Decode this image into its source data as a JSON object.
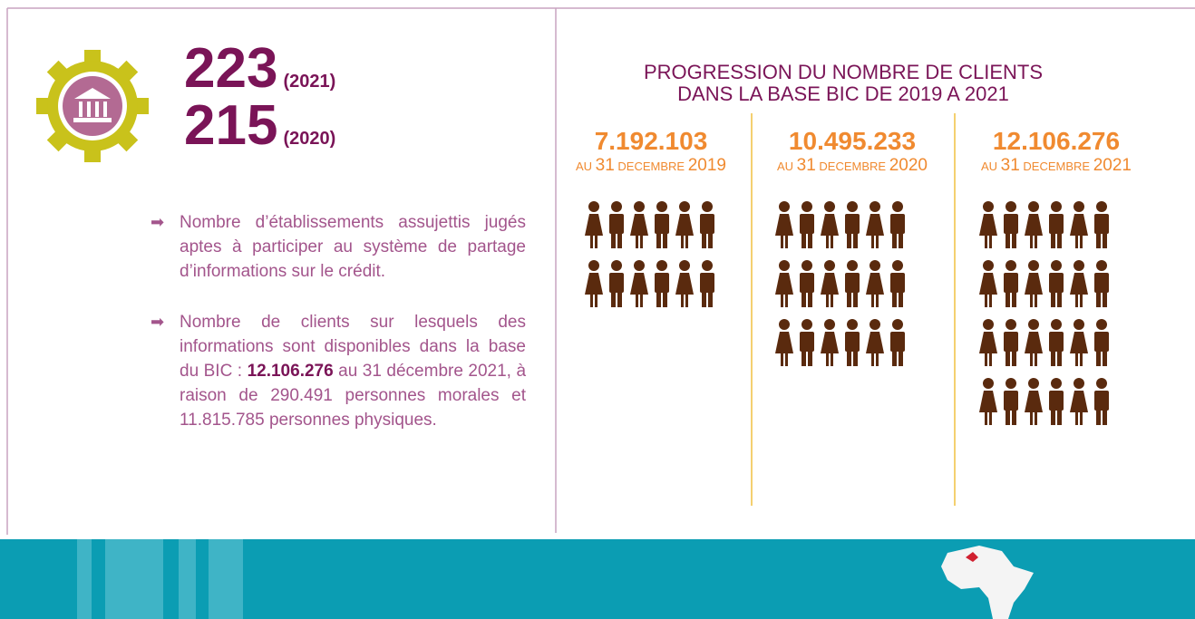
{
  "left": {
    "figures": [
      {
        "value": "223",
        "year": "(2021)"
      },
      {
        "value": "215",
        "year": "(2020)"
      }
    ],
    "bullets": [
      [
        "Nombre d’établissements assujettis jugés aptes à participer au système de partage d’informations sur le crédit."
      ],
      [
        "Nombre de clients sur lesquels des informations sont disponibles dans la base du BIC : ",
        "12.106.276",
        " au 31 décembre 2021, à raison de 290.491 personnes morales et 11.815.785 personnes physiques."
      ]
    ]
  },
  "right": {
    "title": [
      "PROGRESSION DU NOMBRE DE CLIENTS",
      "DANS LA BASE BIC DE 2019 A 2021"
    ],
    "columns": [
      {
        "count": "7.192.103",
        "date": [
          "AU",
          "31",
          "DECEMBRE",
          "2019"
        ]
      },
      {
        "count": "10.495.233",
        "date": [
          "AU",
          "31",
          "DECEMBRE",
          "2020"
        ]
      },
      {
        "count": "12.106.276",
        "date": [
          "AU",
          "31",
          "DECEMBRE",
          "2021"
        ]
      }
    ]
  }
}
